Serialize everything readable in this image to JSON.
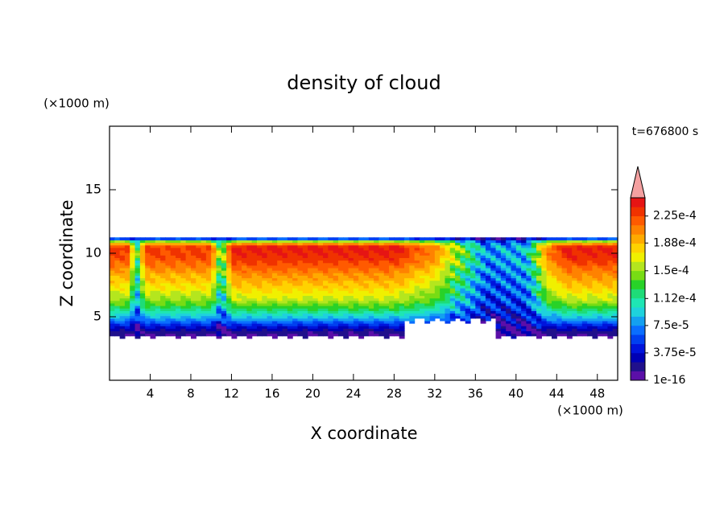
{
  "chart_data": {
    "type": "contour",
    "title": "density of cloud",
    "xlabel": "X coordinate",
    "ylabel": "Z coordinate",
    "x_unit": "(×1000 m)",
    "y_unit": "(×1000 m)",
    "annotation": "t=676800 s",
    "xlim": [
      0,
      50
    ],
    "ylim": [
      0,
      20
    ],
    "xticks": [
      4,
      8,
      12,
      16,
      20,
      24,
      28,
      32,
      36,
      40,
      44,
      48
    ],
    "yticks": [
      5,
      10,
      15
    ],
    "colorbar": {
      "colors": [
        "#5b0fa8",
        "#20108c",
        "#0000b4",
        "#0014dc",
        "#0040f0",
        "#0a6eff",
        "#14a0f0",
        "#1ed2dc",
        "#1ee6b4",
        "#1edc78",
        "#28d228",
        "#78dc14",
        "#b4e61e",
        "#f0f000",
        "#ffd200",
        "#ffaa00",
        "#ff8200",
        "#ff5a00",
        "#f03200",
        "#e61414"
      ],
      "extend_color": "#f4a0a0",
      "clim": [
        0,
        0.00025
      ],
      "ticks": [
        {
          "value": 1e-16,
          "label": "1e-16"
        },
        {
          "value": 3.75e-05,
          "label": "3.75e-5"
        },
        {
          "value": 7.5e-05,
          "label": "7.5e-5"
        },
        {
          "value": 0.000112,
          "label": "1.12e-4"
        },
        {
          "value": 0.00015,
          "label": "1.5e-4"
        },
        {
          "value": 0.000188,
          "label": "1.88e-4"
        },
        {
          "value": 0.000225,
          "label": "2.25e-4"
        }
      ]
    }
  }
}
